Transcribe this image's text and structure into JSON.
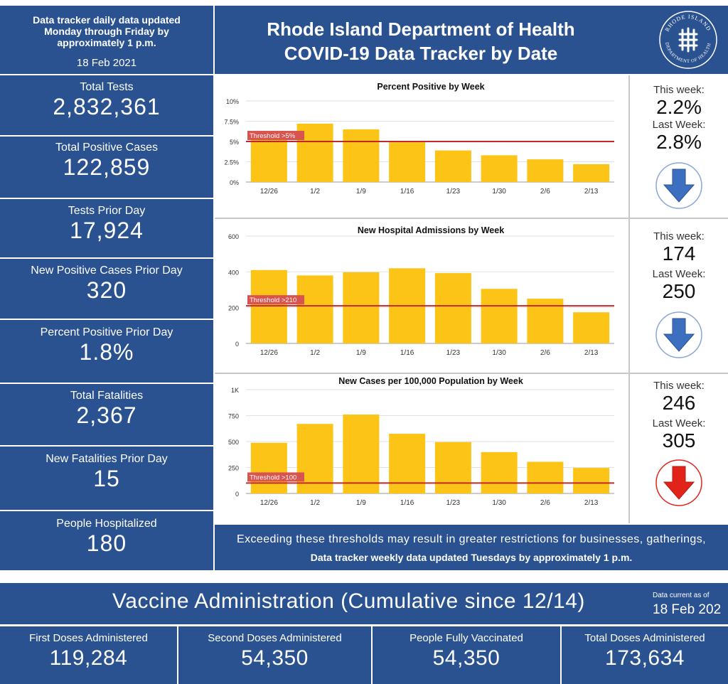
{
  "header": {
    "update_note": [
      "Data tracker daily data updated",
      "Monday through Friday by",
      "approximately 1 p.m."
    ],
    "date": "18 Feb 2021",
    "title_line1": "Rhode Island Department of Health",
    "title_line2": "COVID-19 Data Tracker by Date",
    "seal_text_top": "RHODE ISLAND",
    "seal_text_bottom": "DEPARTMENT OF HEALTH"
  },
  "stats": [
    {
      "label": "Total Tests",
      "value": "2,832,361"
    },
    {
      "label": "Total Positive Cases",
      "value": "122,859"
    },
    {
      "label": "Tests Prior Day",
      "value": "17,924"
    },
    {
      "label": "New Positive Cases Prior Day",
      "value": "320"
    },
    {
      "label": "Percent Positive Prior Day",
      "value": "1.8%"
    },
    {
      "label": "Total Fatalities",
      "value": "2,367"
    },
    {
      "label": "New Fatalities Prior Day",
      "value": "15"
    },
    {
      "label": "People Hospitalized",
      "value": "180"
    }
  ],
  "chart_data": [
    {
      "type": "bar",
      "title": "Percent Positive by Week",
      "categories": [
        "12/26",
        "1/2",
        "1/9",
        "1/16",
        "1/23",
        "1/30",
        "2/6",
        "2/13"
      ],
      "values": [
        5.2,
        7.2,
        6.5,
        4.9,
        3.9,
        3.3,
        2.8,
        2.2
      ],
      "ylim": [
        0,
        10
      ],
      "yticks": [
        0,
        2.5,
        5,
        7.5,
        10
      ],
      "ytick_labels": [
        "0%",
        "2.5%",
        "5%",
        "7.5%",
        "10%"
      ],
      "threshold": 5,
      "threshold_label": "Threshold >5%",
      "grid": true
    },
    {
      "type": "bar",
      "title": "New Hospital Admissions by Week",
      "categories": [
        "12/26",
        "1/2",
        "1/9",
        "1/16",
        "1/23",
        "1/30",
        "2/6",
        "2/13"
      ],
      "values": [
        410,
        380,
        398,
        420,
        393,
        305,
        250,
        174
      ],
      "ylim": [
        0,
        600
      ],
      "yticks": [
        0,
        200,
        400,
        600
      ],
      "ytick_labels": [
        "0",
        "200",
        "400",
        "600"
      ],
      "threshold": 210,
      "threshold_label": "Threshold >210",
      "grid": true
    },
    {
      "type": "bar",
      "title": "New Cases per 100,000 Population by Week",
      "categories": [
        "12/26",
        "1/2",
        "1/9",
        "1/16",
        "1/23",
        "1/30",
        "2/6",
        "2/13"
      ],
      "values": [
        488,
        670,
        760,
        575,
        495,
        398,
        305,
        246
      ],
      "ylim": [
        0,
        1000
      ],
      "yticks": [
        0,
        250,
        500,
        750,
        1000
      ],
      "ytick_labels": [
        "0",
        "250",
        "500",
        "750",
        "1K"
      ],
      "threshold": 100,
      "threshold_label": "Threshold >100",
      "grid": true
    }
  ],
  "weekly": [
    {
      "this_label": "This week:",
      "this_value": "2.2%",
      "last_label": "Last Week:",
      "last_value": "2.8%",
      "trend": "down",
      "arrow_color": "#3d6fc0"
    },
    {
      "this_label": "This week:",
      "this_value": "174",
      "last_label": "Last Week:",
      "last_value": "250",
      "trend": "down",
      "arrow_color": "#3d6fc0"
    },
    {
      "this_label": "This week:",
      "this_value": "246",
      "last_label": "Last Week:",
      "last_value": "305",
      "trend": "down",
      "arrow_color": "#e2231a"
    }
  ],
  "footer": {
    "line1": "Exceeding these thresholds may result in greater restrictions for businesses, gatherings,",
    "line2": "Data tracker weekly data updated Tuesdays by approximately 1 p.m."
  },
  "vaccine": {
    "title": "Vaccine Administration (Cumulative since 12/14)",
    "current_label": "Data current as of",
    "current_date": "18 Feb 202",
    "boxes": [
      {
        "label": "First Doses Administered",
        "value": "119,284"
      },
      {
        "label": "Second Doses Administered",
        "value": "54,350"
      },
      {
        "label": "People Fully Vaccinated",
        "value": "54,350"
      },
      {
        "label": "Total Doses Administered",
        "value": "173,634"
      }
    ]
  },
  "colors": {
    "navy": "#2a5291",
    "bar": "#fcc417",
    "threshold": "#c0282b",
    "arrow_blue": "#3d6fc0",
    "arrow_red": "#e2231a"
  }
}
